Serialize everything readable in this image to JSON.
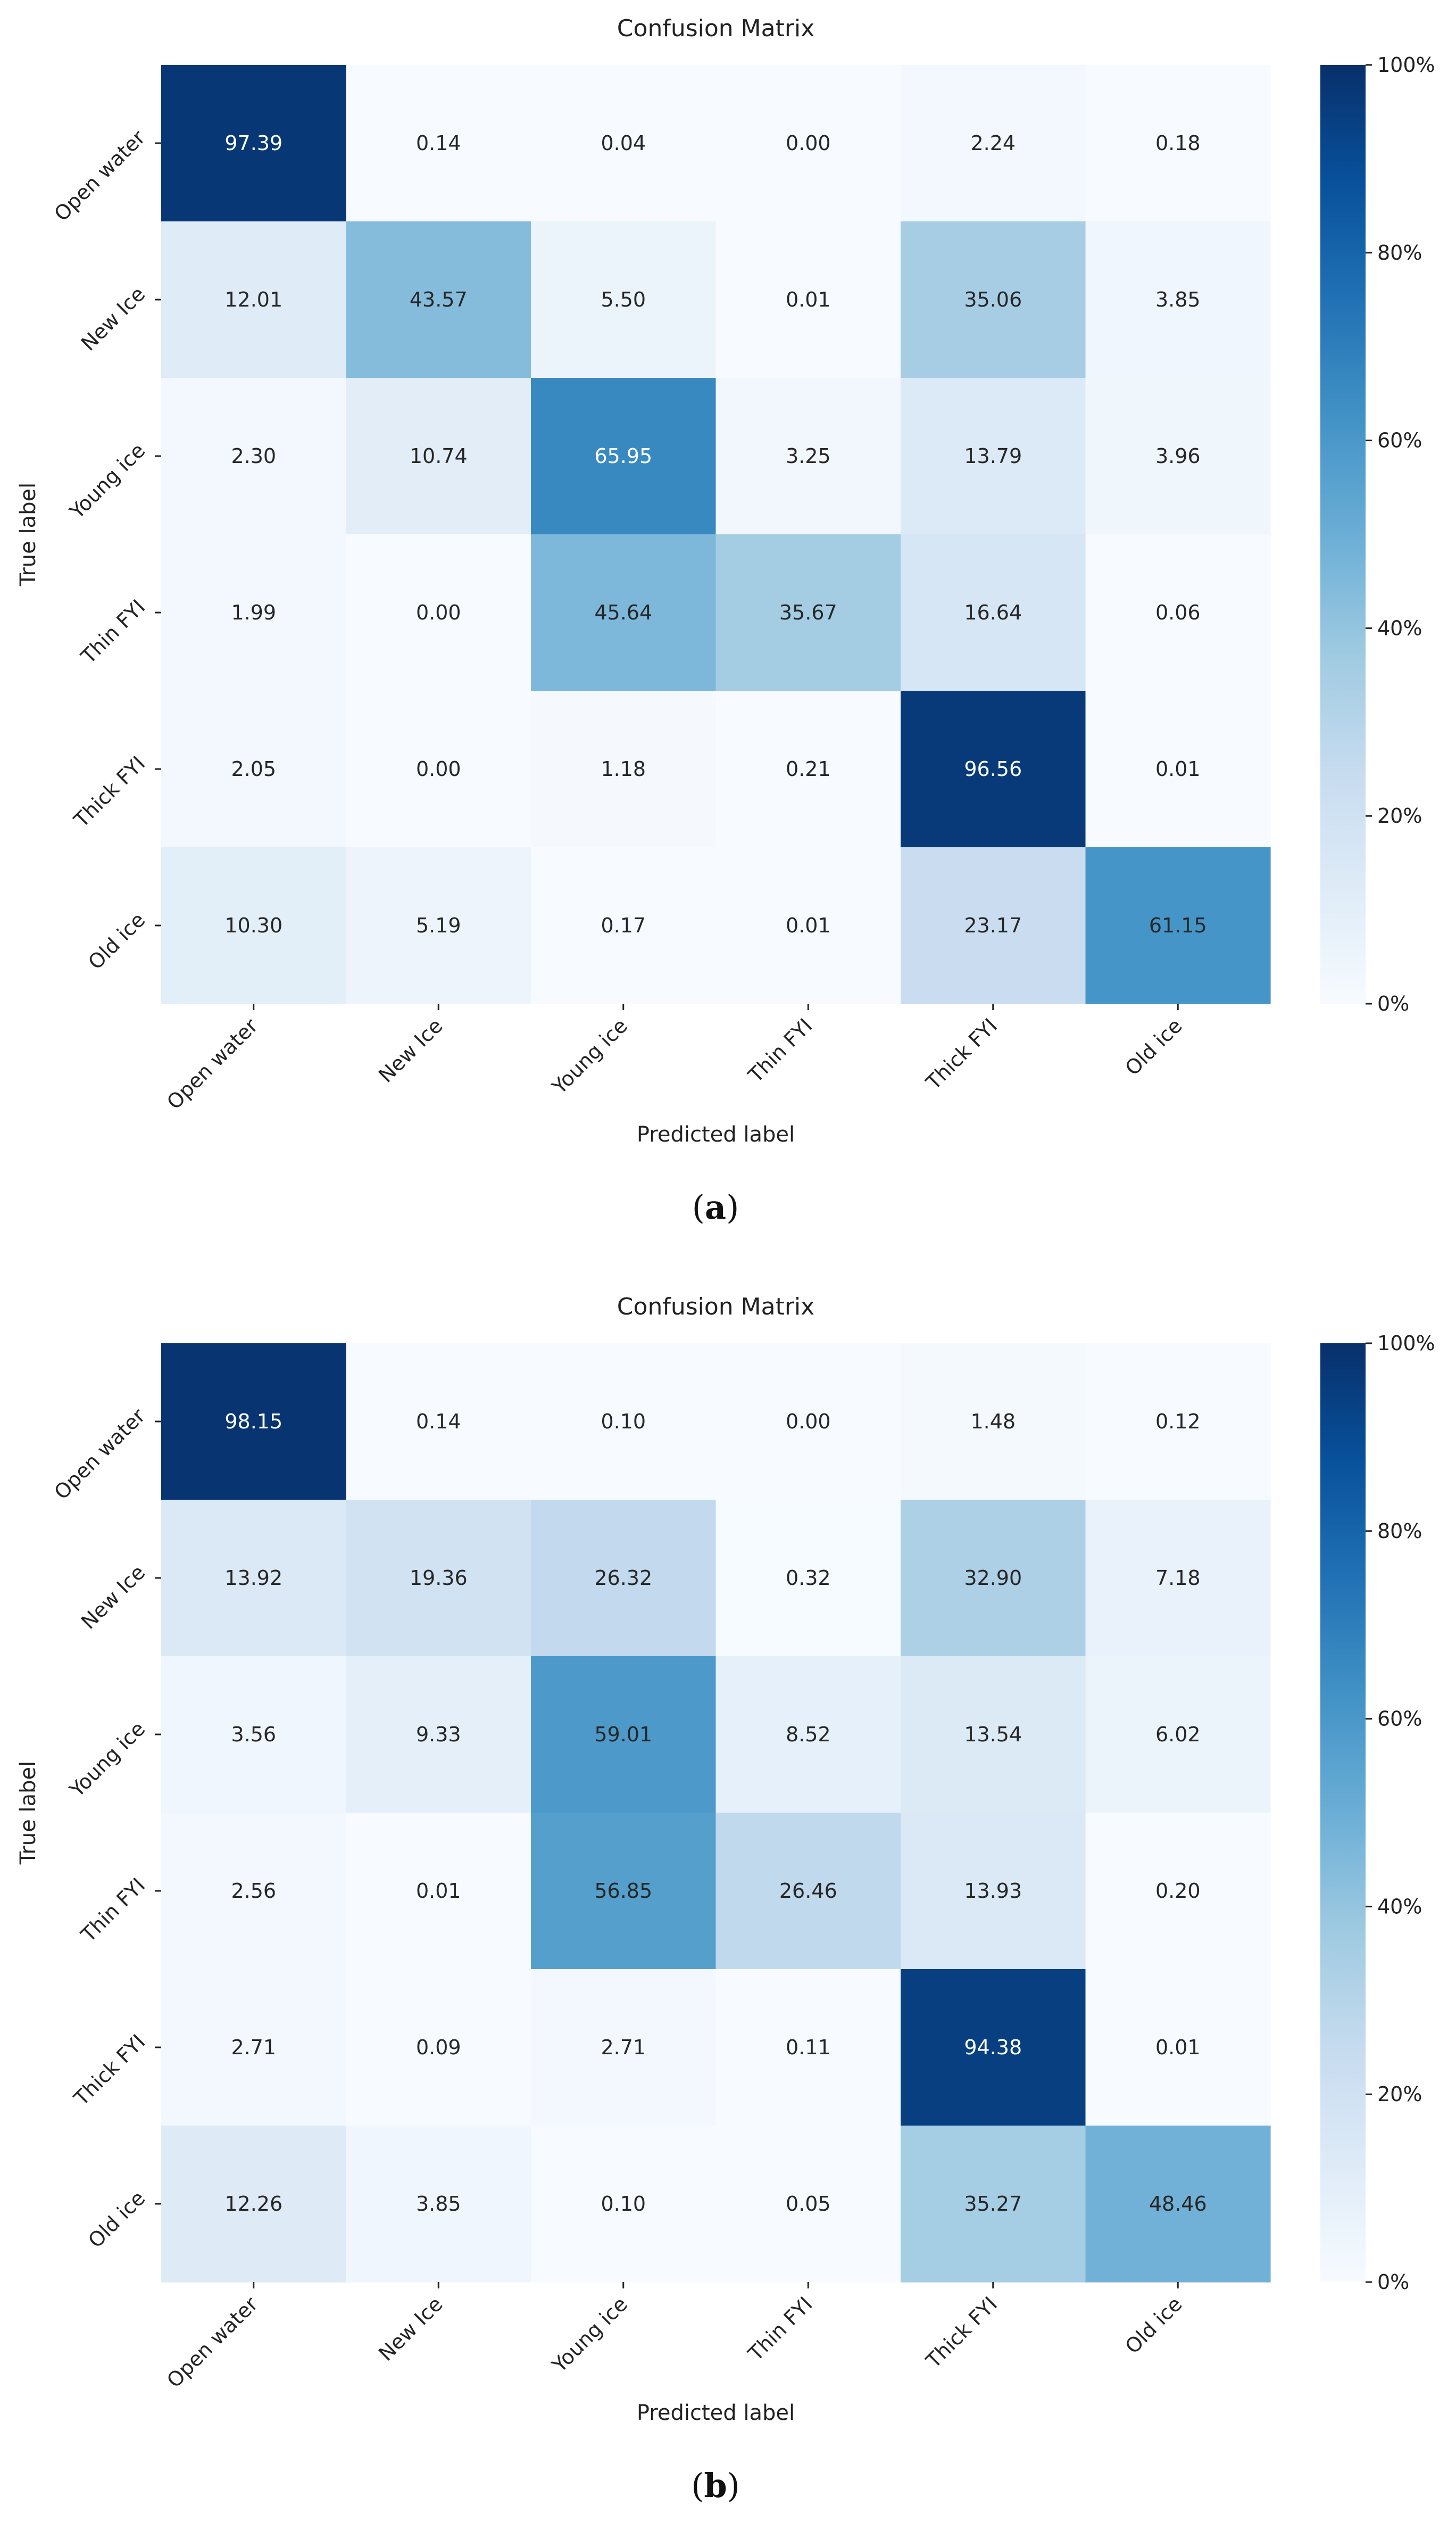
{
  "chart_data": [
    {
      "type": "heatmap",
      "caption": "a",
      "title": "Confusion Matrix",
      "xlabel": "Predicted label",
      "ylabel": "True label",
      "x_categories": [
        "Open water",
        "New Ice",
        "Young ice",
        "Thin FYI",
        "Thick FYI",
        "Old ice"
      ],
      "y_categories": [
        "Open water",
        "New Ice",
        "Young ice",
        "Thin FYI",
        "Thick FYI",
        "Old ice"
      ],
      "values": [
        [
          97.39,
          0.14,
          0.04,
          0.0,
          2.24,
          0.18
        ],
        [
          12.01,
          43.57,
          5.5,
          0.01,
          35.06,
          3.85
        ],
        [
          2.3,
          10.74,
          65.95,
          3.25,
          13.79,
          3.96
        ],
        [
          1.99,
          0.0,
          45.64,
          35.67,
          16.64,
          0.06
        ],
        [
          2.05,
          0.0,
          1.18,
          0.21,
          96.56,
          0.01
        ],
        [
          10.3,
          5.19,
          0.17,
          0.01,
          23.17,
          61.15
        ]
      ],
      "colorbar": {
        "range": [
          0,
          100
        ],
        "ticks": [
          0,
          20,
          40,
          60,
          80,
          100
        ],
        "tick_labels": [
          "0%",
          "20%",
          "40%",
          "60%",
          "80%",
          "100%"
        ],
        "colormap": "Blues"
      }
    },
    {
      "type": "heatmap",
      "caption": "b",
      "title": "Confusion Matrix",
      "xlabel": "Predicted label",
      "ylabel": "True label",
      "x_categories": [
        "Open water",
        "New Ice",
        "Young ice",
        "Thin FYI",
        "Thick FYI",
        "Old ice"
      ],
      "y_categories": [
        "Open water",
        "New Ice",
        "Young ice",
        "Thin FYI",
        "Thick FYI",
        "Old ice"
      ],
      "values": [
        [
          98.15,
          0.14,
          0.1,
          0.0,
          1.48,
          0.12
        ],
        [
          13.92,
          19.36,
          26.32,
          0.32,
          32.9,
          7.18
        ],
        [
          3.56,
          9.33,
          59.01,
          8.52,
          13.54,
          6.02
        ],
        [
          2.56,
          0.01,
          56.85,
          26.46,
          13.93,
          0.2
        ],
        [
          2.71,
          0.09,
          2.71,
          0.11,
          94.38,
          0.01
        ],
        [
          12.26,
          3.85,
          0.1,
          0.05,
          35.27,
          48.46
        ]
      ],
      "colorbar": {
        "range": [
          0,
          100
        ],
        "ticks": [
          0,
          20,
          40,
          60,
          80,
          100
        ],
        "tick_labels": [
          "0%",
          "20%",
          "40%",
          "60%",
          "80%",
          "100%"
        ],
        "colormap": "Blues"
      }
    }
  ]
}
